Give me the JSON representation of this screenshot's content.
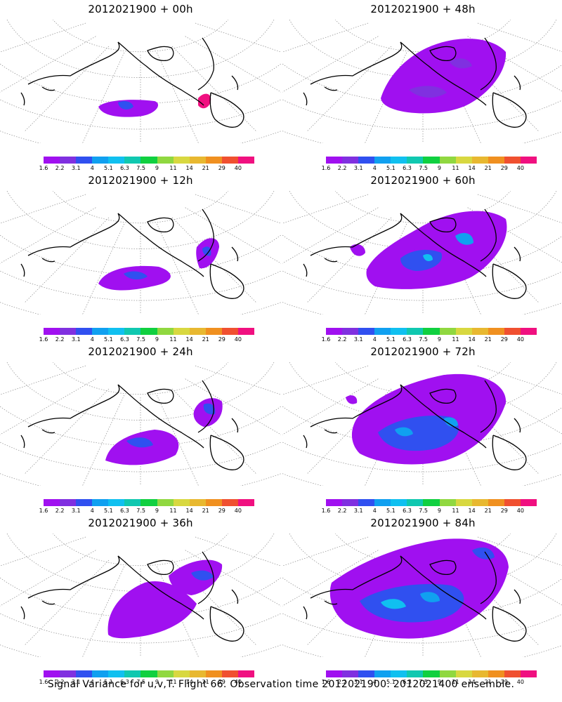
{
  "figure": {
    "caption": "Signal Variance for u,v,T. Flight 66. Observation time 2012021900. 2012021400 ensemble."
  },
  "colorbar": {
    "labels": [
      "1.6",
      "2.2",
      "3.1",
      "4",
      "5.1",
      "6.3",
      "7.5",
      "9",
      "11",
      "14",
      "21",
      "29",
      "40"
    ],
    "colors": [
      "#a010f0",
      "#8030e0",
      "#3050f0",
      "#10a0f0",
      "#10c0f0",
      "#10c8b0",
      "#10d040",
      "#90d840",
      "#d8d840",
      "#e8b830",
      "#f09020",
      "#f05030",
      "#f01080"
    ]
  },
  "panels": [
    {
      "title": "2012021900 + 00h",
      "coverage": 1
    },
    {
      "title": "2012021900 + 12h",
      "coverage": 2
    },
    {
      "title": "2012021900 + 24h",
      "coverage": 3
    },
    {
      "title": "2012021900 + 36h",
      "coverage": 4
    },
    {
      "title": "2012021900 + 48h",
      "coverage": 5
    },
    {
      "title": "2012021900 + 60h",
      "coverage": 6
    },
    {
      "title": "2012021900 + 72h",
      "coverage": 7
    },
    {
      "title": "2012021900 + 84h",
      "coverage": 8
    }
  ]
}
